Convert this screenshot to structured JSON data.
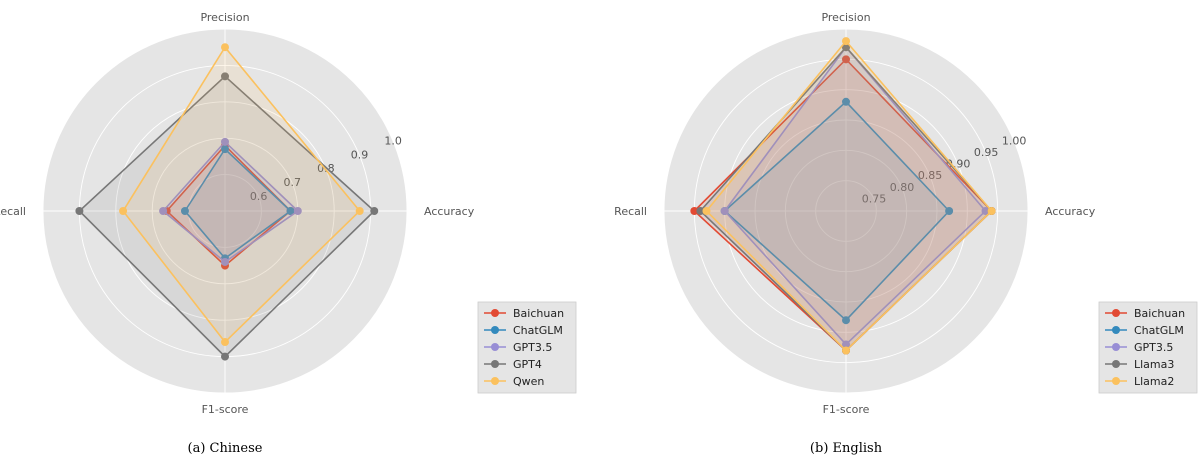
{
  "chart_data": [
    {
      "type": "radar",
      "caption": "(a)  Chinese",
      "axes": [
        "Accuracy",
        "Precision",
        "Recall",
        "F1-score"
      ],
      "rlim": [
        0.5,
        1.0
      ],
      "rticks": [
        "0.6",
        "0.7",
        "0.8",
        "0.9",
        "1.0"
      ],
      "rtick_values": [
        0.6,
        0.7,
        0.8,
        0.9,
        1.0
      ],
      "grid": true,
      "legend_position": "lower-right",
      "series": [
        {
          "name": "Baichuan",
          "color": "#e24a33",
          "values": [
            0.68,
            0.68,
            0.66,
            0.65
          ]
        },
        {
          "name": "ChatGLM",
          "color": "#348abd",
          "values": [
            0.68,
            0.67,
            0.61,
            0.63
          ]
        },
        {
          "name": "GPT3.5",
          "color": "#988ed5",
          "values": [
            0.7,
            0.69,
            0.67,
            0.64
          ]
        },
        {
          "name": "GPT4",
          "color": "#777777",
          "values": [
            0.91,
            0.87,
            0.9,
            0.9
          ]
        },
        {
          "name": "Qwen",
          "color": "#fbc15e",
          "values": [
            0.87,
            0.95,
            0.78,
            0.86
          ]
        }
      ]
    },
    {
      "type": "radar",
      "caption": "(b)  English",
      "axes": [
        "Accuracy",
        "Precision",
        "Recall",
        "F1-score"
      ],
      "rlim": [
        0.7,
        1.0
      ],
      "rticks": [
        "0.75",
        "0.80",
        "0.85",
        "0.90",
        "0.95",
        "1.00"
      ],
      "rtick_values": [
        0.75,
        0.8,
        0.85,
        0.9,
        0.95,
        1.0
      ],
      "grid": true,
      "legend_position": "lower-right",
      "series": [
        {
          "name": "Baichuan",
          "color": "#e24a33",
          "values": [
            0.94,
            0.95,
            0.95,
            0.93
          ]
        },
        {
          "name": "ChatGLM",
          "color": "#348abd",
          "values": [
            0.87,
            0.88,
            0.9,
            0.88
          ]
        },
        {
          "name": "GPT3.5",
          "color": "#988ed5",
          "values": [
            0.93,
            0.97,
            0.9,
            0.92
          ]
        },
        {
          "name": "Llama3",
          "color": "#777777",
          "values": [
            0.94,
            0.97,
            0.94,
            0.93
          ]
        },
        {
          "name": "Llama2",
          "color": "#fbc15e",
          "values": [
            0.94,
            0.98,
            0.93,
            0.93
          ]
        }
      ]
    }
  ]
}
